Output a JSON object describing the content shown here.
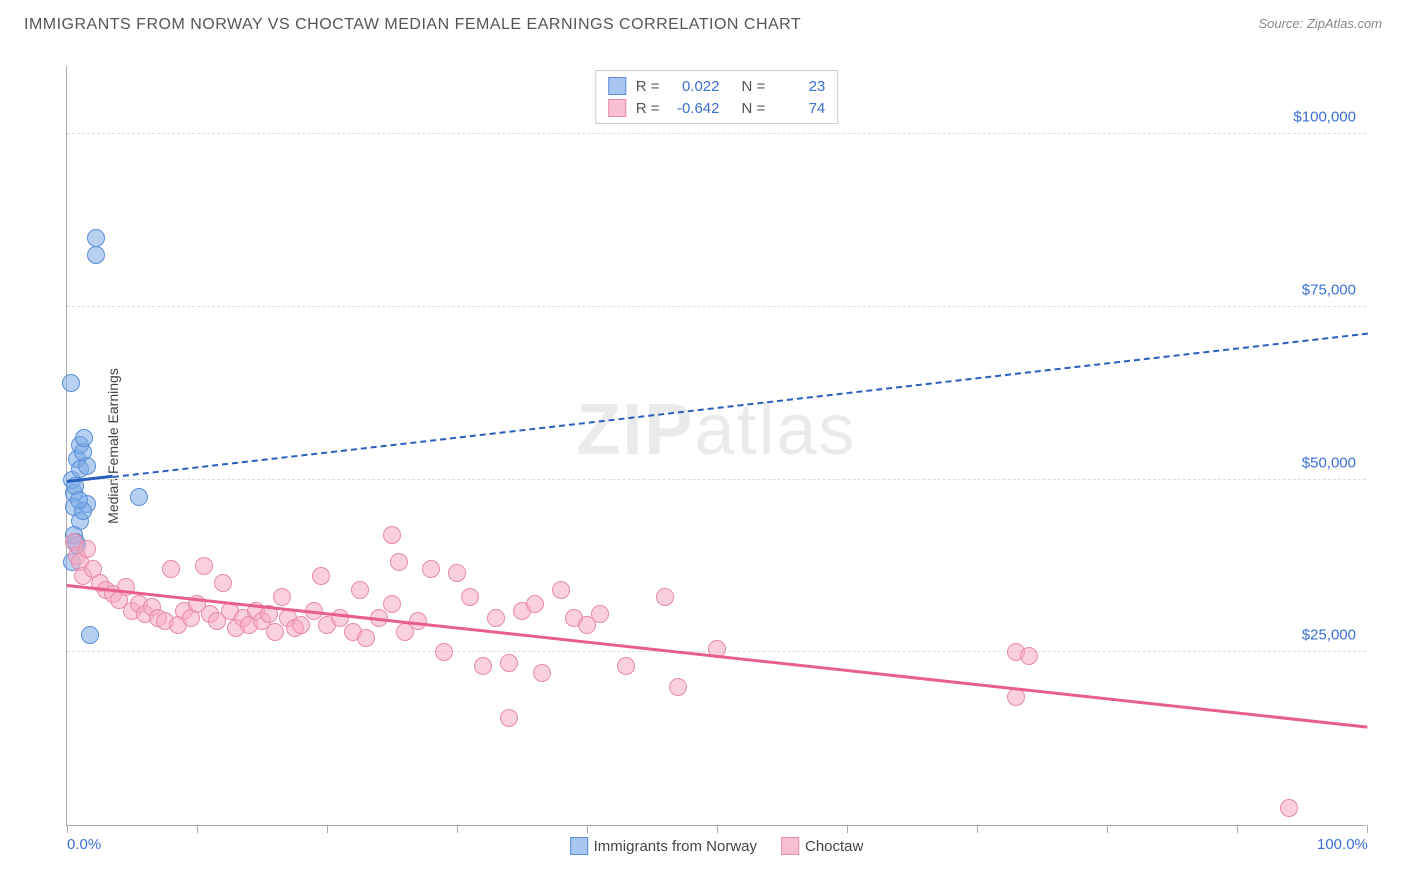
{
  "chart": {
    "title": "IMMIGRANTS FROM NORWAY VS CHOCTAW MEDIAN FEMALE EARNINGS CORRELATION CHART",
    "source_label": "Source: ZipAtlas.com",
    "watermark_bold": "ZIP",
    "watermark_light": "atlas",
    "y_axis_title": "Median Female Earnings",
    "type": "scatter",
    "background": "#ffffff",
    "grid_color": "#dddddd",
    "axis_color": "#aaaaaa",
    "label_color": "#3b6fd6",
    "xlim": [
      0,
      100
    ],
    "ylim": [
      0,
      110000
    ],
    "x_ticks": [
      0,
      10,
      20,
      30,
      40,
      50,
      60,
      70,
      80,
      90,
      100
    ],
    "x_tick_labels": {
      "0": "0.0%",
      "100": "100.0%"
    },
    "y_gridlines": [
      25000,
      50000,
      75000,
      100000
    ],
    "y_tick_labels": {
      "25000": "$25,000",
      "50000": "$50,000",
      "75000": "$75,000",
      "100000": "$100,000"
    },
    "legend_top": [
      {
        "swatch_fill": "#a8c6f0",
        "swatch_border": "#5a8fd8",
        "r_label": "R =",
        "r_value": "0.022",
        "n_label": "N =",
        "n_value": "23"
      },
      {
        "swatch_fill": "#f7c0d0",
        "swatch_border": "#e88aa8",
        "r_label": "R =",
        "r_value": "-0.642",
        "n_label": "N =",
        "n_value": "74"
      }
    ],
    "legend_bottom": [
      {
        "swatch_fill": "#a8c6f0",
        "swatch_border": "#5a8fd8",
        "label": "Immigrants from Norway"
      },
      {
        "swatch_fill": "#f7c0d0",
        "swatch_border": "#e88aa8",
        "label": "Choctaw"
      }
    ],
    "series": [
      {
        "name": "norway",
        "point_fill": "rgba(120,170,230,0.55)",
        "point_stroke": "#5a8fd8",
        "point_radius": 9,
        "trend_color": "#2a5fc0",
        "trend_solid_end_x": 3.5,
        "trend": {
          "x1": 0,
          "y1": 49500,
          "x2": 100,
          "y2": 71000
        },
        "points": [
          {
            "x": 0.5,
            "y": 48000
          },
          {
            "x": 0.5,
            "y": 46000
          },
          {
            "x": 0.8,
            "y": 53000
          },
          {
            "x": 1.0,
            "y": 55000
          },
          {
            "x": 1.2,
            "y": 54000
          },
          {
            "x": 0.4,
            "y": 50000
          },
          {
            "x": 0.6,
            "y": 49000
          },
          {
            "x": 1.0,
            "y": 51500
          },
          {
            "x": 1.3,
            "y": 56000
          },
          {
            "x": 0.3,
            "y": 64000
          },
          {
            "x": 2.2,
            "y": 85000
          },
          {
            "x": 2.2,
            "y": 82500
          },
          {
            "x": 5.5,
            "y": 47500
          },
          {
            "x": 1.0,
            "y": 44000
          },
          {
            "x": 0.5,
            "y": 42000
          },
          {
            "x": 0.8,
            "y": 40500
          },
          {
            "x": 1.5,
            "y": 46500
          },
          {
            "x": 1.2,
            "y": 45500
          },
          {
            "x": 0.7,
            "y": 41000
          },
          {
            "x": 1.8,
            "y": 27500
          },
          {
            "x": 0.4,
            "y": 38000
          },
          {
            "x": 0.9,
            "y": 47000
          },
          {
            "x": 1.5,
            "y": 52000
          }
        ]
      },
      {
        "name": "choctaw",
        "point_fill": "rgba(245,170,195,0.55)",
        "point_stroke": "#e88aa8",
        "point_radius": 9,
        "trend_color": "#e85f8a",
        "trend_solid_end_x": 100,
        "trend": {
          "x1": 0,
          "y1": 34500,
          "x2": 100,
          "y2": 14000
        },
        "points": [
          {
            "x": 0.5,
            "y": 41000
          },
          {
            "x": 0.8,
            "y": 39000
          },
          {
            "x": 1.0,
            "y": 38000
          },
          {
            "x": 1.5,
            "y": 40000
          },
          {
            "x": 1.2,
            "y": 36000
          },
          {
            "x": 2.0,
            "y": 37000
          },
          {
            "x": 2.5,
            "y": 35000
          },
          {
            "x": 3.0,
            "y": 34000
          },
          {
            "x": 3.5,
            "y": 33500
          },
          {
            "x": 4.0,
            "y": 32500
          },
          {
            "x": 4.5,
            "y": 34500
          },
          {
            "x": 5.0,
            "y": 31000
          },
          {
            "x": 5.5,
            "y": 32000
          },
          {
            "x": 6.0,
            "y": 30500
          },
          {
            "x": 6.5,
            "y": 31500
          },
          {
            "x": 7.0,
            "y": 30000
          },
          {
            "x": 7.5,
            "y": 29500
          },
          {
            "x": 8.0,
            "y": 37000
          },
          {
            "x": 8.5,
            "y": 29000
          },
          {
            "x": 9.0,
            "y": 31000
          },
          {
            "x": 9.5,
            "y": 30000
          },
          {
            "x": 10.0,
            "y": 32000
          },
          {
            "x": 10.5,
            "y": 37500
          },
          {
            "x": 11.0,
            "y": 30500
          },
          {
            "x": 11.5,
            "y": 29500
          },
          {
            "x": 12.0,
            "y": 35000
          },
          {
            "x": 12.5,
            "y": 31000
          },
          {
            "x": 13.0,
            "y": 28500
          },
          {
            "x": 13.5,
            "y": 30000
          },
          {
            "x": 14.0,
            "y": 29000
          },
          {
            "x": 14.5,
            "y": 31000
          },
          {
            "x": 15.0,
            "y": 29500
          },
          {
            "x": 15.5,
            "y": 30500
          },
          {
            "x": 16.0,
            "y": 28000
          },
          {
            "x": 16.5,
            "y": 33000
          },
          {
            "x": 17.0,
            "y": 30000
          },
          {
            "x": 17.5,
            "y": 28500
          },
          {
            "x": 18.0,
            "y": 29000
          },
          {
            "x": 19.0,
            "y": 31000
          },
          {
            "x": 19.5,
            "y": 36000
          },
          {
            "x": 20.0,
            "y": 29000
          },
          {
            "x": 21.0,
            "y": 30000
          },
          {
            "x": 22.0,
            "y": 28000
          },
          {
            "x": 22.5,
            "y": 34000
          },
          {
            "x": 23.0,
            "y": 27000
          },
          {
            "x": 24.0,
            "y": 30000
          },
          {
            "x": 25.0,
            "y": 42000
          },
          {
            "x": 25.5,
            "y": 38000
          },
          {
            "x": 26.0,
            "y": 28000
          },
          {
            "x": 25.0,
            "y": 32000
          },
          {
            "x": 27.0,
            "y": 29500
          },
          {
            "x": 28.0,
            "y": 37000
          },
          {
            "x": 29.0,
            "y": 25000
          },
          {
            "x": 30.0,
            "y": 36500
          },
          {
            "x": 31.0,
            "y": 33000
          },
          {
            "x": 32.0,
            "y": 23000
          },
          {
            "x": 33.0,
            "y": 30000
          },
          {
            "x": 34.0,
            "y": 23500
          },
          {
            "x": 34.0,
            "y": 15500
          },
          {
            "x": 35.0,
            "y": 31000
          },
          {
            "x": 36.0,
            "y": 32000
          },
          {
            "x": 36.5,
            "y": 22000
          },
          {
            "x": 38.0,
            "y": 34000
          },
          {
            "x": 39.0,
            "y": 30000
          },
          {
            "x": 40.0,
            "y": 29000
          },
          {
            "x": 41.0,
            "y": 30500
          },
          {
            "x": 43.0,
            "y": 23000
          },
          {
            "x": 46.0,
            "y": 33000
          },
          {
            "x": 47.0,
            "y": 20000
          },
          {
            "x": 50.0,
            "y": 25500
          },
          {
            "x": 73.0,
            "y": 25000
          },
          {
            "x": 74.0,
            "y": 24500
          },
          {
            "x": 73.0,
            "y": 18500
          },
          {
            "x": 94.0,
            "y": 2500
          }
        ]
      }
    ]
  }
}
